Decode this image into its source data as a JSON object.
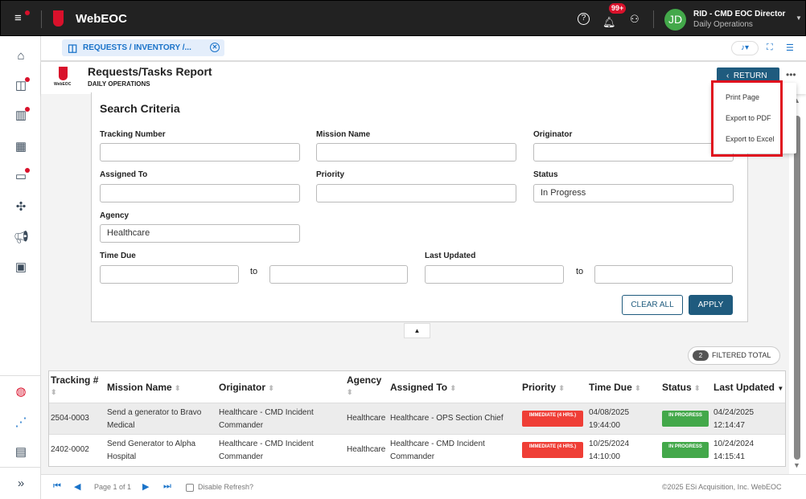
{
  "app": {
    "title": "WebEOC",
    "notification_count": "99+",
    "user_initials": "JD",
    "user_name": "RID - CMD EOC Director",
    "user_incident": "Daily Operations",
    "avatar_color": "#43a84a",
    "brand_color": "#d9112b"
  },
  "tab": {
    "label": "REQUESTS / INVENTORY /..."
  },
  "report": {
    "title": "Requests/Tasks Report",
    "subtitle": "DAILY OPERATIONS",
    "logo_text": "WebEOC",
    "return_label": "RETURN"
  },
  "menu": {
    "items": [
      "Print Page",
      "Export to PDF",
      "Export to Excel"
    ]
  },
  "search": {
    "title": "Search Criteria",
    "fields": {
      "tracking_number": {
        "label": "Tracking Number",
        "value": ""
      },
      "mission_name": {
        "label": "Mission Name",
        "value": ""
      },
      "originator": {
        "label": "Originator",
        "value": ""
      },
      "assigned_to": {
        "label": "Assigned To",
        "value": ""
      },
      "priority": {
        "label": "Priority",
        "value": ""
      },
      "status": {
        "label": "Status",
        "value": "In Progress"
      },
      "agency": {
        "label": "Agency",
        "value": "Healthcare"
      },
      "time_due": {
        "label": "Time Due",
        "to": "to"
      },
      "last_updated": {
        "label": "Last Updated",
        "to": "to"
      }
    },
    "clear_label": "CLEAR ALL",
    "apply_label": "APPLY"
  },
  "filtered": {
    "count": "2",
    "label": "FILTERED TOTAL"
  },
  "table": {
    "headers": [
      "Tracking #",
      "Mission Name",
      "Originator",
      "Agency",
      "Assigned To",
      "Priority",
      "Time Due",
      "Status",
      "Last Updated"
    ],
    "rows": [
      {
        "tracking": "2504-0003",
        "mission": "Send a generator to Bravo Medical",
        "originator": "Healthcare - CMD Incident Commander",
        "agency": "Healthcare",
        "assigned": "Healthcare - OPS Section Chief",
        "priority": "IMMEDIATE (4 HRS.)",
        "time_due_date": "04/08/2025",
        "time_due_time": "19:44:00",
        "status": "IN PROGRESS",
        "updated_date": "04/24/2025",
        "updated_time": "12:14:47"
      },
      {
        "tracking": "2402-0002",
        "mission": "Send Generator to Alpha Hospital",
        "originator": "Healthcare - CMD Incident Commander",
        "agency": "Healthcare",
        "assigned": "Healthcare - CMD Incident Commander",
        "priority": "IMMEDIATE (4 HRS.)",
        "time_due_date": "10/25/2024",
        "time_due_time": "14:10:00",
        "status": "IN PROGRESS",
        "updated_date": "10/24/2024",
        "updated_time": "14:15:41"
      }
    ]
  },
  "pager": {
    "page_text": "Page 1 of 1",
    "disable_refresh": "Disable Refresh?"
  },
  "footer": {
    "copyright": "©2025 ESi Acquisition, Inc. WebEOC"
  }
}
